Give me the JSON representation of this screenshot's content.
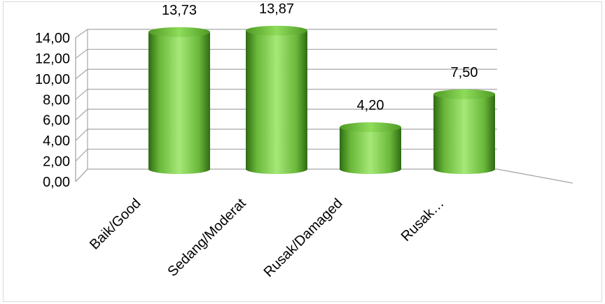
{
  "chart_data": {
    "type": "bar",
    "style": "3d-cylinder",
    "categories": [
      "Baik/Good",
      "Sedang/Moderat",
      "Rusak/Damaged",
      "Rusak…"
    ],
    "values": [
      13.73,
      13.87,
      4.2,
      7.5
    ],
    "value_labels": [
      "13,73",
      "13,87",
      "4,20",
      "7,50"
    ],
    "yticks": [
      "0,00",
      "2,00",
      "4,00",
      "6,00",
      "8,00",
      "10,00",
      "12,00",
      "14,00"
    ],
    "ylim": [
      0,
      14
    ],
    "grid": true,
    "legend": "none",
    "title": "",
    "xlabel": "",
    "ylabel": "",
    "colors": {
      "bar_light": "#a6e878",
      "bar_mid": "#6ab83a",
      "bar_dark": "#2f6b14",
      "grid": "#a6a6a6"
    }
  }
}
